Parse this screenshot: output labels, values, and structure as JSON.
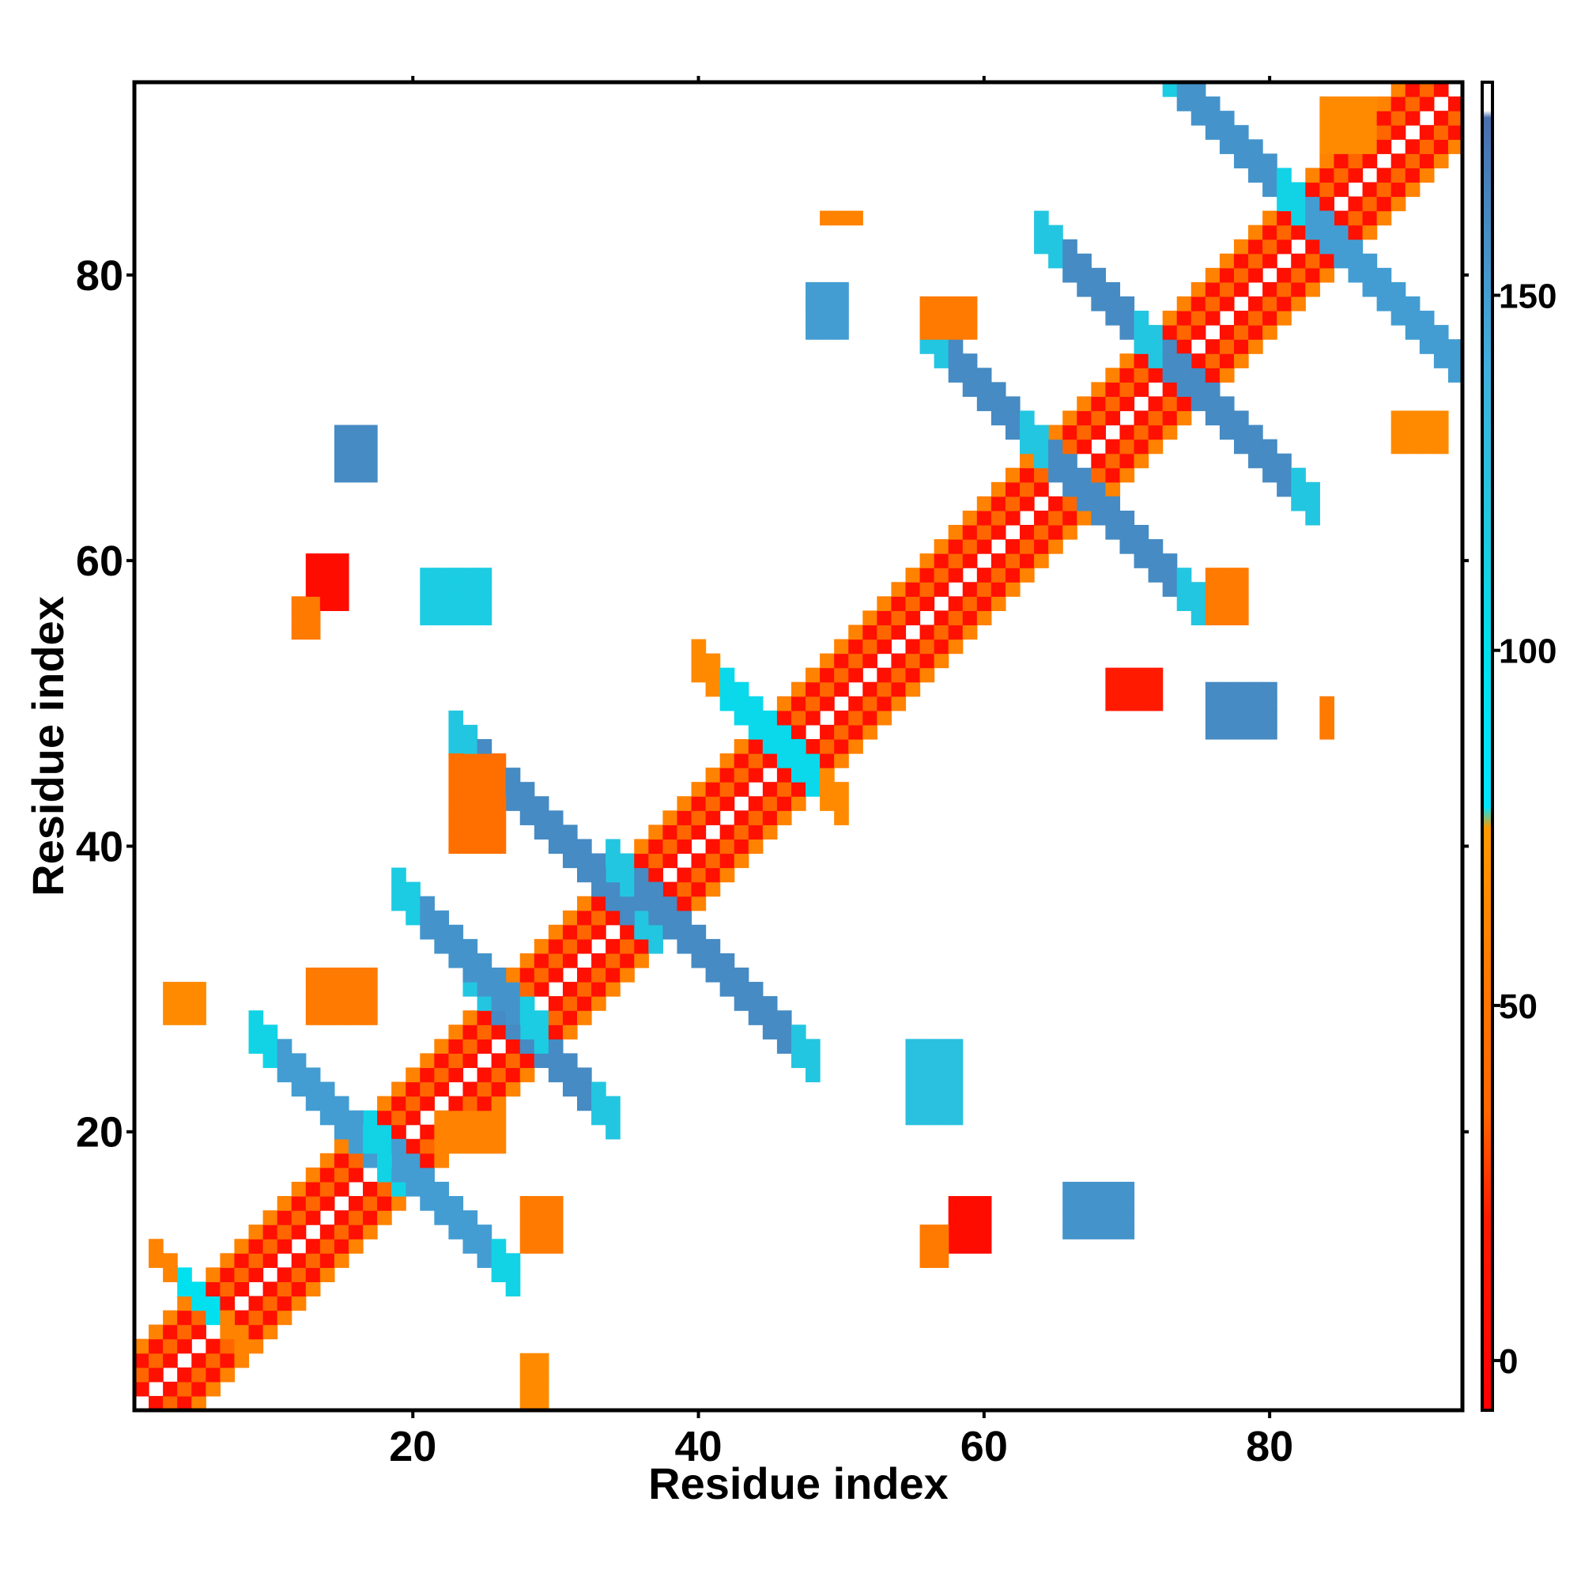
{
  "chart_data": {
    "type": "heatmap",
    "title": "",
    "xlabel": "Residue index",
    "ylabel": "Residue index",
    "xlim": [
      0.5,
      93.5
    ],
    "ylim": [
      0.5,
      93.5
    ],
    "xticks": [
      20,
      40,
      60,
      80
    ],
    "yticks": [
      20,
      40,
      60,
      80
    ],
    "x_tick_labels": [
      "20",
      "40",
      "60",
      "80"
    ],
    "y_tick_labels": [
      "20",
      "40",
      "60",
      "80"
    ],
    "grid": false,
    "legend": "colorbar-right",
    "colorbar": {
      "range": [
        -7,
        180
      ],
      "ticks": [
        0,
        50,
        100,
        150
      ],
      "tick_labels": [
        "0",
        "50",
        "100",
        "150"
      ],
      "stops": [
        {
          "value": -7,
          "color": "#ff0000"
        },
        {
          "value": 20,
          "color": "#ff1a00"
        },
        {
          "value": 35,
          "color": "#ff6600"
        },
        {
          "value": 53,
          "color": "#ff7700"
        },
        {
          "value": 75,
          "color": "#ff9900"
        },
        {
          "value": 78,
          "color": "#00e5ff"
        },
        {
          "value": 100,
          "color": "#00e0ee"
        },
        {
          "value": 118,
          "color": "#20c8e0"
        },
        {
          "value": 140,
          "color": "#40b0e0"
        },
        {
          "value": 175,
          "color": "#4a6fae"
        },
        {
          "value": 176,
          "color": "#ffffff"
        },
        {
          "value": 180,
          "color": "#ffffff"
        }
      ]
    },
    "value_description": "angle",
    "patches": [
      {
        "kind": "diag",
        "from": 1,
        "to": 93,
        "offsets": [
          1,
          2,
          3,
          4
        ],
        "values": [
          10,
          35,
          10,
          60
        ]
      },
      {
        "kind": "anti",
        "center": [
          5,
          8
        ],
        "half": 3,
        "width": 2,
        "value": 100
      },
      {
        "kind": "anti",
        "center": [
          14,
          21
        ],
        "half": 5,
        "width": 3,
        "value": 150
      },
      {
        "kind": "anti",
        "center": [
          22,
          14
        ],
        "half": 5,
        "width": 3,
        "value": 150
      },
      {
        "kind": "anti",
        "center": [
          29,
          25
        ],
        "half": 5,
        "width": 3,
        "value": 160
      },
      {
        "kind": "anti",
        "center": [
          24,
          31
        ],
        "half": 5,
        "width": 3,
        "value": 155
      },
      {
        "kind": "anti",
        "center": [
          30,
          40
        ],
        "half": 7,
        "width": 3,
        "value": 160
      },
      {
        "kind": "anti",
        "center": [
          41,
          31
        ],
        "half": 7,
        "width": 3,
        "value": 160
      },
      {
        "kind": "anti",
        "center": [
          45,
          47
        ],
        "half": 5,
        "width": 3,
        "value": 105
      },
      {
        "kind": "anti",
        "center": [
          62,
          69
        ],
        "half": 6,
        "width": 3,
        "value": 160
      },
      {
        "kind": "anti",
        "center": [
          69,
          62
        ],
        "half": 6,
        "width": 3,
        "value": 160
      },
      {
        "kind": "anti",
        "center": [
          70,
          76
        ],
        "half": 6,
        "width": 3,
        "value": 160
      },
      {
        "kind": "anti",
        "center": [
          77,
          69
        ],
        "half": 6,
        "width": 3,
        "value": 160
      },
      {
        "kind": "anti",
        "center": [
          78,
          88
        ],
        "half": 6,
        "width": 3,
        "value": 155
      },
      {
        "kind": "anti",
        "center": [
          88,
          78
        ],
        "half": 7,
        "width": 3,
        "value": 150
      },
      {
        "kind": "block",
        "x": [
          13,
          15
        ],
        "y": [
          57,
          60
        ],
        "value": 5
      },
      {
        "kind": "block",
        "x": [
          12,
          13
        ],
        "y": [
          55,
          57
        ],
        "value": 55
      },
      {
        "kind": "block",
        "x": [
          58,
          60
        ],
        "y": [
          12,
          15
        ],
        "value": 5
      },
      {
        "kind": "block",
        "x": [
          56,
          57
        ],
        "y": [
          11,
          13
        ],
        "value": 55
      },
      {
        "kind": "block",
        "x": [
          21,
          25
        ],
        "y": [
          56,
          59
        ],
        "value": 115
      },
      {
        "kind": "block",
        "x": [
          55,
          58
        ],
        "y": [
          21,
          26
        ],
        "value": 125
      },
      {
        "kind": "block",
        "x": [
          15,
          17
        ],
        "y": [
          66,
          69
        ],
        "value": 160
      },
      {
        "kind": "block",
        "x": [
          66,
          70
        ],
        "y": [
          13,
          16
        ],
        "value": 155
      },
      {
        "kind": "block",
        "x": [
          76,
          80
        ],
        "y": [
          48,
          51
        ],
        "value": 160
      },
      {
        "kind": "block",
        "x": [
          84,
          84
        ],
        "y": [
          48,
          50
        ],
        "value": 55
      },
      {
        "kind": "block",
        "x": [
          69,
          72
        ],
        "y": [
          50,
          52
        ],
        "value": 20
      },
      {
        "kind": "block",
        "x": [
          48,
          50
        ],
        "y": [
          76,
          79
        ],
        "value": 150
      },
      {
        "kind": "block",
        "x": [
          49,
          51
        ],
        "y": [
          84,
          84
        ],
        "value": 60
      },
      {
        "kind": "block",
        "x": [
          84,
          87
        ],
        "y": [
          89,
          92
        ],
        "value": 65
      },
      {
        "kind": "block",
        "x": [
          89,
          92
        ],
        "y": [
          68,
          70
        ],
        "value": 65
      },
      {
        "kind": "block",
        "x": [
          56,
          59
        ],
        "y": [
          76,
          78
        ],
        "value": 55
      },
      {
        "kind": "block",
        "x": [
          76,
          78
        ],
        "y": [
          56,
          59
        ],
        "value": 55
      },
      {
        "kind": "block",
        "x": [
          22,
          26
        ],
        "y": [
          19,
          21
        ],
        "value": 60
      },
      {
        "kind": "block",
        "x": [
          28,
          30
        ],
        "y": [
          12,
          15
        ],
        "value": 55
      },
      {
        "kind": "block",
        "x": [
          3,
          5
        ],
        "y": [
          28,
          30
        ],
        "value": 65
      },
      {
        "kind": "block",
        "x": [
          13,
          17
        ],
        "y": [
          28,
          31
        ],
        "value": 55
      },
      {
        "kind": "block",
        "x": [
          23,
          26
        ],
        "y": [
          40,
          46
        ],
        "value": 45
      },
      {
        "kind": "block",
        "x": [
          28,
          29
        ],
        "y": [
          1,
          4
        ],
        "value": 65
      }
    ]
  }
}
